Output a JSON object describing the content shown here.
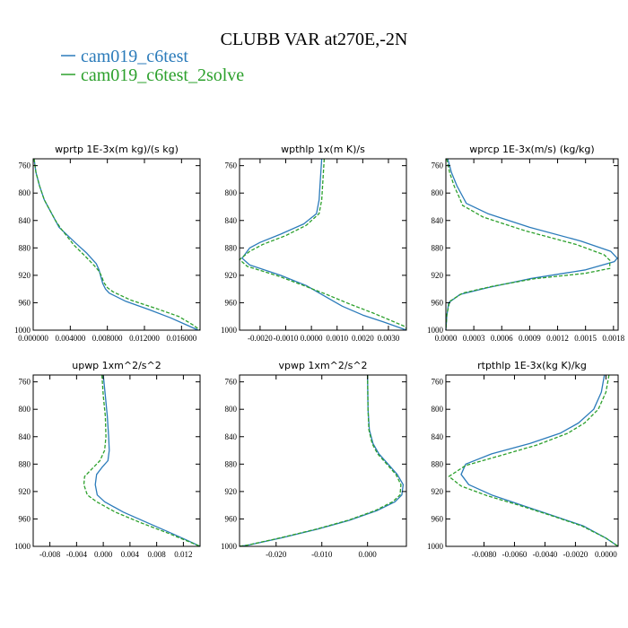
{
  "figure": {
    "title": "CLUBB VAR at270E,-2N",
    "legend": [
      {
        "label": "cam019_c6test",
        "color": "#2b7bba"
      },
      {
        "label": "cam019_c6test_2solve",
        "color": "#2ca02c"
      }
    ]
  },
  "chart_data": [
    {
      "type": "line",
      "title": "wprtp  1E-3x(m kg)/(s kg)",
      "xlim": [
        0,
        0.018
      ],
      "ylim": [
        1000,
        750
      ],
      "xticks": [
        0,
        0.004,
        0.008,
        0.012,
        0.016
      ],
      "xtick_labels": [
        "0.000000",
        "0.004000",
        "0.008000",
        "0.012000",
        "0.016000"
      ],
      "yticks": [
        760,
        800,
        840,
        880,
        920,
        960,
        1000
      ],
      "ytick_labels": [
        "760",
        "800",
        "840",
        "880",
        "920",
        "960",
        "1000"
      ],
      "series": [
        {
          "name": "cam019_c6test",
          "color": "#2b7bba",
          "dashed": false,
          "x": [
            0.0001,
            0.0003,
            0.0007,
            0.0012,
            0.0018,
            0.0024,
            0.0028,
            0.0045,
            0.0058,
            0.0068,
            0.0071,
            0.0073,
            0.0075,
            0.0078,
            0.0082,
            0.01,
            0.0125,
            0.0148,
            0.0168,
            0.0178
          ],
          "y": [
            750,
            770,
            790,
            810,
            825,
            840,
            850,
            872,
            888,
            903,
            912,
            922,
            932,
            940,
            946,
            958,
            970,
            982,
            994,
            1000
          ]
        },
        {
          "name": "cam019_c6test_2solve",
          "color": "#2ca02c",
          "dashed": true,
          "x": [
            0.0001,
            0.0003,
            0.0007,
            0.0012,
            0.0018,
            0.0024,
            0.003,
            0.0044,
            0.0056,
            0.0066,
            0.0071,
            0.0074,
            0.0076,
            0.008,
            0.0086,
            0.0105,
            0.0132,
            0.0157,
            0.0172,
            0.018
          ],
          "y": [
            750,
            770,
            790,
            810,
            825,
            840,
            852,
            876,
            892,
            906,
            914,
            922,
            930,
            938,
            944,
            956,
            968,
            980,
            992,
            1000
          ]
        }
      ]
    },
    {
      "type": "line",
      "title": "wpthlp  1x(m K)/s",
      "xlim": [
        -0.0028,
        0.0037
      ],
      "ylim": [
        1000,
        750
      ],
      "xticks": [
        -0.002,
        -0.001,
        0,
        0.001,
        0.002,
        0.003
      ],
      "xtick_labels": [
        "-0.0020",
        "-0.0010",
        "0.0000",
        "0.0010",
        "0.0020",
        "0.0030"
      ],
      "yticks": [
        760,
        800,
        840,
        880,
        920,
        960,
        1000
      ],
      "ytick_labels": [
        "760",
        "800",
        "840",
        "880",
        "920",
        "960",
        "1000"
      ],
      "series": [
        {
          "name": "cam019_c6test",
          "color": "#2b7bba",
          "dashed": false,
          "x": [
            0.0004,
            0.00035,
            0.0003,
            0.0002,
            -0.0003,
            -0.0012,
            -0.002,
            -0.0024,
            -0.0027,
            -0.0024,
            -0.0012,
            -0.0002,
            0.0005,
            0.0012,
            0.002,
            0.0028,
            0.0034,
            0.0037
          ],
          "y": [
            750,
            780,
            810,
            830,
            845,
            860,
            872,
            880,
            895,
            905,
            920,
            935,
            950,
            965,
            978,
            988,
            996,
            1000
          ]
        },
        {
          "name": "cam019_c6test_2solve",
          "color": "#2ca02c",
          "dashed": true,
          "x": [
            0.0005,
            0.00045,
            0.0004,
            0.0003,
            -0.0002,
            -0.001,
            -0.0019,
            -0.0024,
            -0.0028,
            -0.0025,
            -0.0013,
            -0.0003,
            0.0006,
            0.0015,
            0.0024,
            0.0031,
            0.0036,
            0.0037
          ],
          "y": [
            750,
            780,
            810,
            830,
            847,
            862,
            875,
            885,
            897,
            907,
            921,
            935,
            948,
            962,
            975,
            986,
            994,
            998
          ]
        }
      ]
    },
    {
      "type": "line",
      "title": "wprcp  1E-3x(m/s) (kg/kg)",
      "xlim": [
        0,
        0.00185
      ],
      "ylim": [
        1000,
        750
      ],
      "xticks": [
        0,
        0.0003,
        0.0006,
        0.0009,
        0.0012,
        0.0015,
        0.0018
      ],
      "xtick_labels": [
        "0.0000",
        "0.0003",
        "0.0006",
        "0.0009",
        "0.0012",
        "0.0015",
        "0.0018"
      ],
      "yticks": [
        760,
        800,
        840,
        880,
        920,
        960,
        1000
      ],
      "ytick_labels": [
        "760",
        "800",
        "840",
        "880",
        "920",
        "960",
        "1000"
      ],
      "series": [
        {
          "name": "cam019_c6test",
          "color": "#2b7bba",
          "dashed": false,
          "x": [
            2e-05,
            6e-05,
            0.00012,
            0.00018,
            0.00022,
            0.00045,
            0.0009,
            0.00145,
            0.00177,
            0.00184,
            0.00181,
            0.0015,
            0.0009,
            0.00045,
            0.00015,
            3e-05,
            1e-05,
            0.0
          ],
          "y": [
            750,
            770,
            790,
            805,
            815,
            830,
            850,
            870,
            885,
            895,
            900,
            912,
            925,
            938,
            948,
            960,
            980,
            1000
          ]
        },
        {
          "name": "cam019_c6test_2solve",
          "color": "#2ca02c",
          "dashed": true,
          "x": [
            1e-05,
            4e-05,
            9e-05,
            0.00014,
            0.00018,
            0.0004,
            0.00085,
            0.0014,
            0.0017,
            0.00176,
            0.00176,
            0.0015,
            0.00095,
            0.0005,
            0.00018,
            4e-05,
            1e-05,
            0.0
          ],
          "y": [
            750,
            770,
            790,
            805,
            818,
            835,
            855,
            875,
            890,
            898,
            910,
            917,
            925,
            936,
            946,
            958,
            978,
            1000
          ]
        }
      ]
    },
    {
      "type": "line",
      "title": "upwp  1xm^2/s^2",
      "xlim": [
        -0.0105,
        0.0145
      ],
      "ylim": [
        1000,
        750
      ],
      "xticks": [
        -0.008,
        -0.004,
        0,
        0.004,
        0.008,
        0.012
      ],
      "xtick_labels": [
        "-0.008",
        "-0.004",
        "0.000",
        "0.004",
        "0.008",
        "0.012"
      ],
      "yticks": [
        760,
        800,
        840,
        880,
        920,
        960,
        1000
      ],
      "ytick_labels": [
        "760",
        "800",
        "840",
        "880",
        "920",
        "960",
        "1000"
      ],
      "series": [
        {
          "name": "cam019_c6test",
          "color": "#2b7bba",
          "dashed": false,
          "x": [
            0.0,
            0.0003,
            0.0006,
            0.0008,
            0.0009,
            0.0007,
            -0.0002,
            -0.001,
            -0.0012,
            -0.0009,
            0.0002,
            0.003,
            0.0065,
            0.01,
            0.013,
            0.0145
          ],
          "y": [
            750,
            780,
            810,
            840,
            860,
            875,
            885,
            895,
            910,
            925,
            935,
            950,
            965,
            980,
            993,
            1000
          ]
        },
        {
          "name": "cam019_c6test_2solve",
          "color": "#2ca02c",
          "dashed": true,
          "x": [
            -0.0002,
            0.0,
            0.0003,
            0.0004,
            0.0002,
            -0.0005,
            -0.0018,
            -0.0028,
            -0.0029,
            -0.0024,
            -0.001,
            0.0018,
            0.0055,
            0.0095,
            0.0128,
            0.0145
          ],
          "y": [
            750,
            780,
            810,
            840,
            860,
            875,
            888,
            898,
            910,
            925,
            935,
            950,
            965,
            980,
            993,
            1000
          ]
        }
      ]
    },
    {
      "type": "line",
      "title": "vpwp  1xm^2/s^2",
      "xlim": [
        -0.028,
        0.0085
      ],
      "ylim": [
        1000,
        750
      ],
      "xticks": [
        -0.02,
        -0.01,
        0
      ],
      "xtick_labels": [
        "-0.020",
        "-0.010",
        "0.000"
      ],
      "yticks": [
        760,
        800,
        840,
        880,
        920,
        960,
        1000
      ],
      "ytick_labels": [
        "760",
        "800",
        "840",
        "880",
        "920",
        "960",
        "1000"
      ],
      "series": [
        {
          "name": "cam019_c6test",
          "color": "#2b7bba",
          "dashed": false,
          "x": [
            0.0,
            0.0001,
            0.0004,
            0.0012,
            0.0025,
            0.0045,
            0.0065,
            0.0078,
            0.0075,
            0.006,
            0.002,
            -0.004,
            -0.011,
            -0.019,
            -0.026,
            -0.028
          ],
          "y": [
            750,
            800,
            830,
            850,
            865,
            880,
            895,
            910,
            925,
            935,
            948,
            962,
            975,
            988,
            998,
            1000
          ]
        },
        {
          "name": "cam019_c6test_2solve",
          "color": "#2ca02c",
          "dashed": true,
          "x": [
            0.0,
            0.0001,
            0.0003,
            0.001,
            0.0022,
            0.0042,
            0.0062,
            0.0073,
            0.0071,
            0.0055,
            0.0016,
            -0.0043,
            -0.0113,
            -0.0193,
            -0.0262,
            -0.028
          ],
          "y": [
            750,
            800,
            830,
            850,
            865,
            880,
            895,
            910,
            925,
            935,
            948,
            962,
            975,
            988,
            998,
            1000
          ]
        }
      ]
    },
    {
      "type": "line",
      "title": "rtpthlp  1E-3x(kg K)/kg",
      "xlim": [
        -0.0105,
        0.0008
      ],
      "ylim": [
        1000,
        750
      ],
      "xticks": [
        -0.008,
        -0.006,
        -0.004,
        -0.002,
        0
      ],
      "xtick_labels": [
        "-0.0080",
        "-0.0060",
        "-0.0040",
        "-0.0020",
        "0.0000"
      ],
      "yticks": [
        760,
        800,
        840,
        880,
        920,
        960,
        1000
      ],
      "ytick_labels": [
        "760",
        "800",
        "840",
        "880",
        "920",
        "960",
        "1000"
      ],
      "series": [
        {
          "name": "cam019_c6test",
          "color": "#2b7bba",
          "dashed": false,
          "x": [
            -0.0001,
            -0.0003,
            -0.0008,
            -0.0018,
            -0.003,
            -0.005,
            -0.0075,
            -0.0092,
            -0.0095,
            -0.009,
            -0.0075,
            -0.0055,
            -0.0035,
            -0.0015,
            0.0,
            0.0008
          ],
          "y": [
            750,
            775,
            800,
            820,
            835,
            850,
            865,
            880,
            895,
            910,
            925,
            940,
            955,
            970,
            988,
            1000
          ]
        },
        {
          "name": "cam019_c6test_2solve",
          "color": "#2ca02c",
          "dashed": true,
          "x": [
            0.0002,
            0.0,
            -0.0005,
            -0.0014,
            -0.0025,
            -0.0045,
            -0.007,
            -0.0092,
            -0.0103,
            -0.0095,
            -0.0078,
            -0.0057,
            -0.0036,
            -0.0016,
            0.0,
            0.0008
          ],
          "y": [
            750,
            775,
            800,
            820,
            835,
            852,
            868,
            882,
            898,
            912,
            926,
            940,
            955,
            970,
            988,
            1000
          ]
        }
      ]
    }
  ]
}
